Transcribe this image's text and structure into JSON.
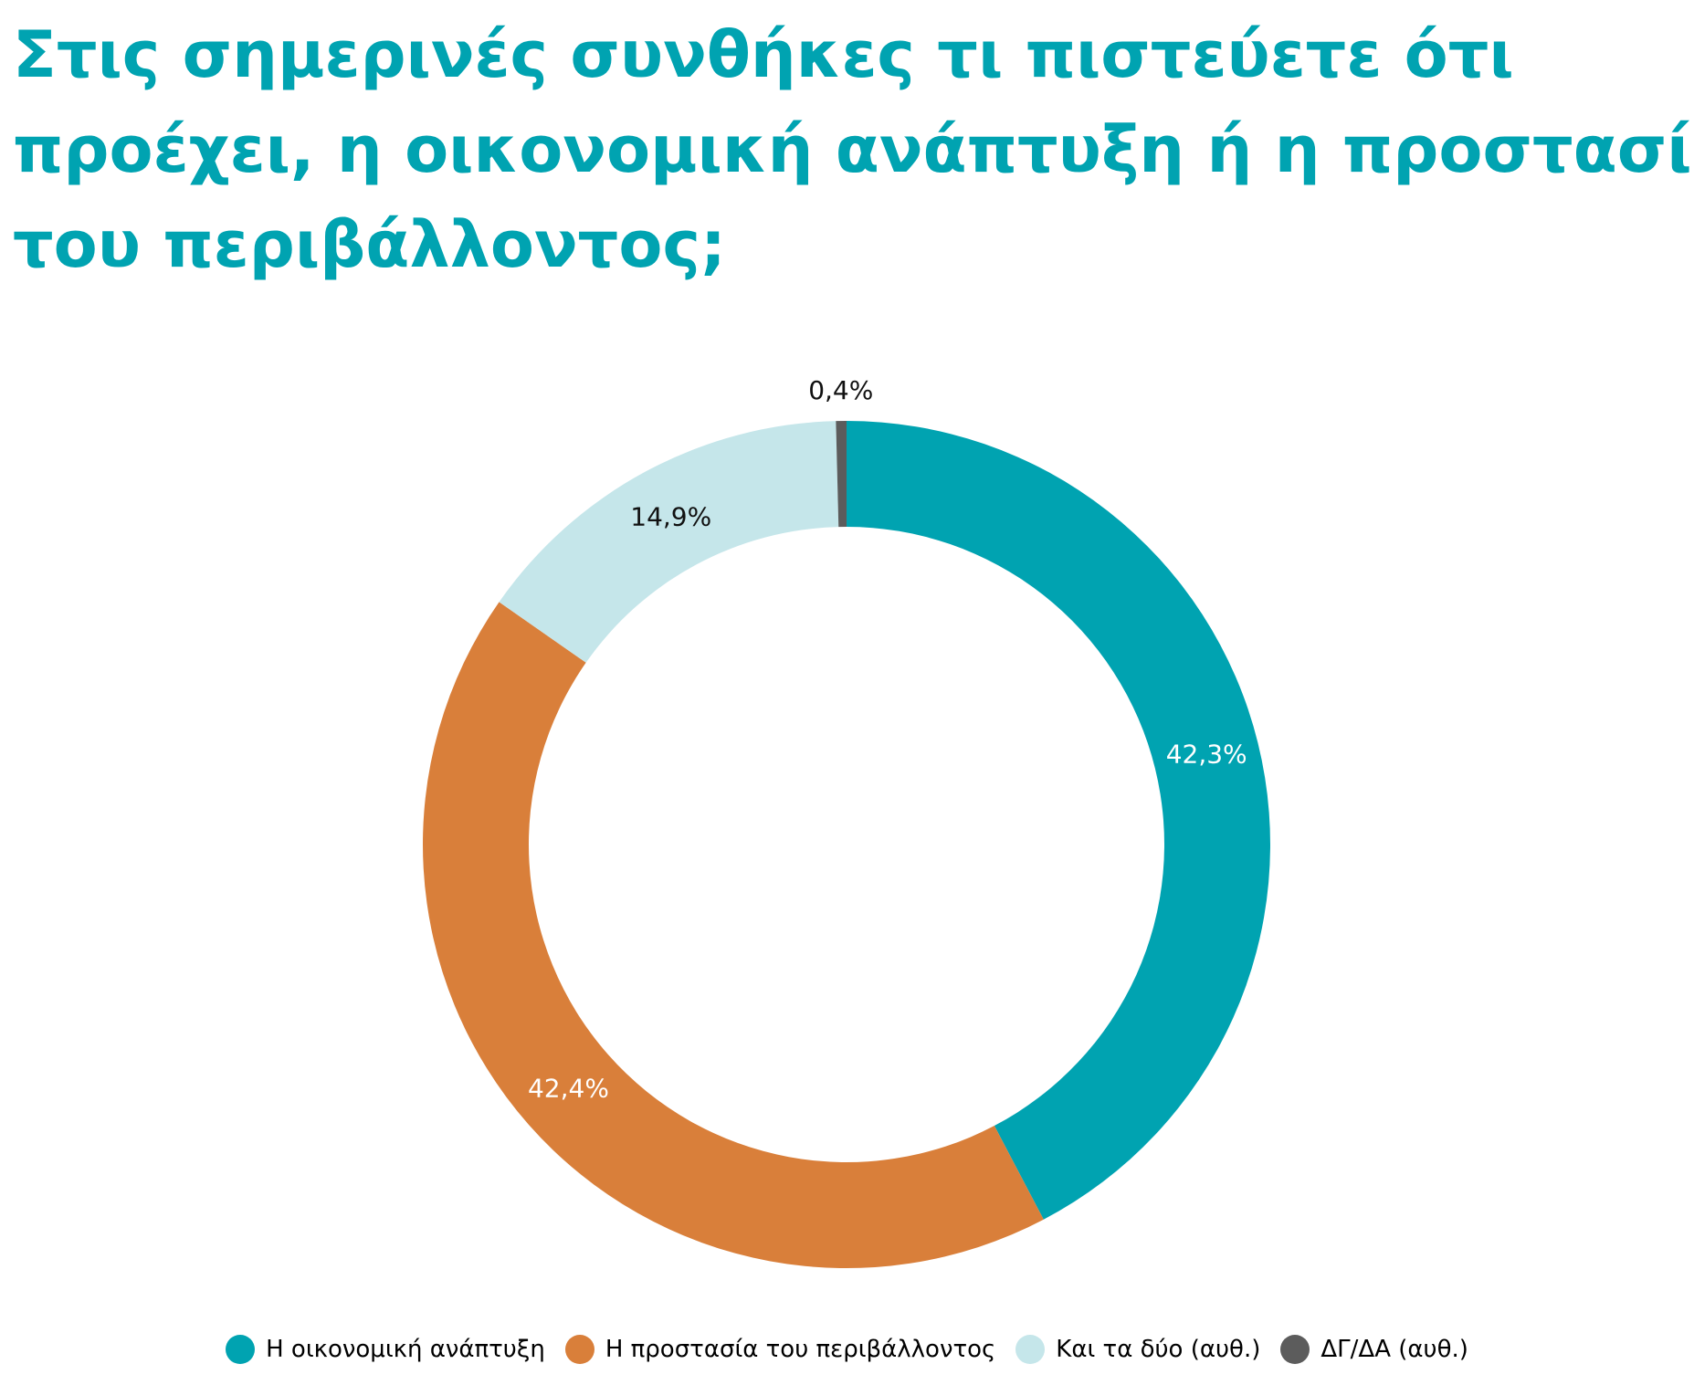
{
  "chart_data": {
    "type": "donut",
    "title": [
      "Στις σημερινές συνθήκες τι πιστεύετε ότι",
      "προέχει, η οικονομική ανάπτυξη ή η προστασία",
      "του περιβάλλοντος;"
    ],
    "unit": "%",
    "legend_position": "bottom",
    "slices": [
      {
        "label": "Η οικονομική ανάπτυξη",
        "value": 42.3,
        "value_label": "42,3%",
        "color": "#00a3b1",
        "label_color": "#ffffff"
      },
      {
        "label": "Η προστασία του περιβάλλοντος",
        "value": 42.4,
        "value_label": "42,4%",
        "color": "#d97f3a",
        "label_color": "#ffffff"
      },
      {
        "label": "Και τα δύο (αυθ.)",
        "value": 14.9,
        "value_label": "14,9%",
        "color": "#c5e6ea",
        "label_color": "#111111"
      },
      {
        "label": "ΔΓ/ΔΑ (αυθ.)",
        "value": 0.4,
        "value_label": "0,4%",
        "color": "#5c5c5c",
        "label_color": "#111111"
      }
    ]
  }
}
